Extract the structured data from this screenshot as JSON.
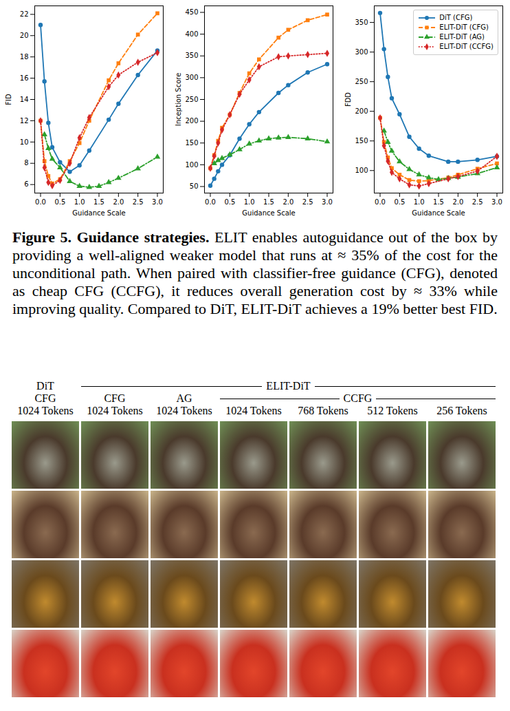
{
  "chart_data": [
    {
      "type": "line",
      "x_label": "Guidance Scale",
      "y_label": "FID",
      "grid": false,
      "xlim": [
        -0.15,
        3.15
      ],
      "xticks": [
        {
          "value": 0,
          "label": "0.0"
        },
        {
          "value": 0.5,
          "label": "0.5"
        },
        {
          "value": 1,
          "label": "1.0"
        },
        {
          "value": 1.5,
          "label": "1.5"
        },
        {
          "value": 2,
          "label": "2.0"
        },
        {
          "value": 2.5,
          "label": "2.5"
        },
        {
          "value": 3,
          "label": "3.0"
        }
      ],
      "ylim": [
        5.2,
        22.8
      ],
      "yticks": [
        6,
        8,
        10,
        12,
        14,
        16,
        18,
        20,
        22
      ],
      "series": [
        {
          "name": "DiT (CFG)",
          "color": "#1f77b4",
          "marker": "circle",
          "line_style": "solid",
          "x": [
            0,
            0.1,
            0.2,
            0.3,
            0.5,
            0.75,
            1,
            1.25,
            1.75,
            2,
            2.5,
            3
          ],
          "values": [
            21,
            15.7,
            11.8,
            9.5,
            8.1,
            7.2,
            7.8,
            9.2,
            12.1,
            13.6,
            16.3,
            18.6
          ]
        },
        {
          "name": "ELIT-DiT (CFG)",
          "color": "#ff7f0e",
          "marker": "square",
          "line_style": "dashed",
          "x": [
            0,
            0.1,
            0.2,
            0.3,
            0.5,
            0.75,
            1,
            1.25,
            1.75,
            2,
            2.5,
            3
          ],
          "values": [
            12,
            8.2,
            6.8,
            6.1,
            6.5,
            8.2,
            9.9,
            12,
            15.8,
            17.4,
            20.1,
            22.1
          ]
        },
        {
          "name": "ELIT-DiT (AG)",
          "color": "#2ca02c",
          "marker": "triangle",
          "line_style": "dashdot",
          "x": [
            0.1,
            0.2,
            0.3,
            0.5,
            0.75,
            1,
            1.25,
            1.5,
            1.75,
            2,
            2.5,
            3
          ],
          "values": [
            10.7,
            9.4,
            8.4,
            7.6,
            6.3,
            5.85,
            5.75,
            5.85,
            6.2,
            6.6,
            7.5,
            8.6
          ]
        },
        {
          "name": "ELIT-DiT (CCFG)",
          "color": "#d62728",
          "marker": "diamond",
          "line_style": "dotted",
          "x": [
            0,
            0.1,
            0.2,
            0.3,
            0.5,
            0.75,
            1,
            1.25,
            1.75,
            2,
            2.5,
            3
          ],
          "values": [
            12,
            7.6,
            6.2,
            5.9,
            6.4,
            8,
            10.4,
            12.3,
            15.2,
            16.3,
            17.5,
            18.4
          ]
        }
      ]
    },
    {
      "type": "line",
      "x_label": "Guidance Scale",
      "y_label": "Inception Score",
      "grid": false,
      "xlim": [
        -0.15,
        3.15
      ],
      "xticks": [
        {
          "value": 0,
          "label": "0.0"
        },
        {
          "value": 0.5,
          "label": "0.5"
        },
        {
          "value": 1,
          "label": "1.0"
        },
        {
          "value": 1.5,
          "label": "1.5"
        },
        {
          "value": 2,
          "label": "2.0"
        },
        {
          "value": 2.5,
          "label": "2.5"
        },
        {
          "value": 3,
          "label": "3.0"
        }
      ],
      "ylim": [
        35,
        465
      ],
      "yticks": [
        50,
        100,
        150,
        200,
        250,
        300,
        350,
        400,
        450
      ],
      "series": [
        {
          "name": "DiT (CFG)",
          "color": "#1f77b4",
          "marker": "circle",
          "line_style": "solid",
          "x": [
            0,
            0.1,
            0.2,
            0.3,
            0.5,
            0.75,
            1,
            1.25,
            1.75,
            2,
            2.5,
            3
          ],
          "values": [
            52,
            68,
            85,
            100,
            122,
            160,
            193,
            221,
            265,
            283,
            312,
            331
          ]
        },
        {
          "name": "ELIT-DiT (CFG)",
          "color": "#ff7f0e",
          "marker": "square",
          "line_style": "dashed",
          "x": [
            0,
            0.1,
            0.2,
            0.3,
            0.5,
            0.75,
            1,
            1.25,
            1.75,
            2,
            2.5,
            3
          ],
          "values": [
            92,
            122,
            155,
            185,
            215,
            265,
            310,
            342,
            392,
            410,
            432,
            445
          ]
        },
        {
          "name": "ELIT-DiT (AG)",
          "color": "#2ca02c",
          "marker": "triangle",
          "line_style": "dashdot",
          "x": [
            0.1,
            0.2,
            0.3,
            0.5,
            0.75,
            1,
            1.25,
            1.5,
            1.75,
            2,
            2.5,
            3
          ],
          "values": [
            103,
            110,
            115,
            123,
            135,
            148,
            155,
            160,
            162,
            163,
            160,
            153
          ]
        },
        {
          "name": "ELIT-DiT (CCFG)",
          "color": "#d62728",
          "marker": "diamond",
          "line_style": "dotted",
          "x": [
            0,
            0.1,
            0.2,
            0.3,
            0.5,
            0.75,
            1,
            1.25,
            1.75,
            2,
            2.5,
            3
          ],
          "values": [
            92,
            120,
            150,
            180,
            215,
            262,
            295,
            325,
            348,
            350,
            353,
            356
          ]
        }
      ]
    },
    {
      "type": "line",
      "x_label": "Guidance Scale",
      "y_label": "FDD",
      "grid": false,
      "legend": "upper right",
      "xlim": [
        -0.15,
        3.15
      ],
      "xticks": [
        {
          "value": 0,
          "label": "0.0"
        },
        {
          "value": 0.5,
          "label": "0.5"
        },
        {
          "value": 1,
          "label": "1.0"
        },
        {
          "value": 1.5,
          "label": "1.5"
        },
        {
          "value": 2,
          "label": "2.0"
        },
        {
          "value": 2.5,
          "label": "2.5"
        },
        {
          "value": 3,
          "label": "3.0"
        }
      ],
      "ylim": [
        62,
        378
      ],
      "yticks": [
        100,
        150,
        200,
        250,
        300,
        350
      ],
      "series": [
        {
          "name": "DiT (CFG)",
          "color": "#1f77b4",
          "marker": "circle",
          "line_style": "solid",
          "x": [
            0,
            0.1,
            0.2,
            0.3,
            0.5,
            0.75,
            1,
            1.25,
            1.75,
            2,
            2.5,
            3
          ],
          "values": [
            366,
            305,
            258,
            222,
            195,
            157,
            137,
            125,
            115,
            115,
            118,
            124
          ]
        },
        {
          "name": "ELIT-DiT (CFG)",
          "color": "#ff7f0e",
          "marker": "square",
          "line_style": "dashed",
          "x": [
            0,
            0.1,
            0.2,
            0.3,
            0.5,
            0.75,
            1,
            1.25,
            1.75,
            2,
            2.5,
            3
          ],
          "values": [
            189,
            148,
            122,
            104,
            93,
            84,
            82,
            83,
            88,
            93,
            103,
            112
          ]
        },
        {
          "name": "ELIT-DiT (AG)",
          "color": "#2ca02c",
          "marker": "triangle",
          "line_style": "dashdot",
          "x": [
            0.1,
            0.2,
            0.3,
            0.5,
            0.75,
            1,
            1.25,
            1.5,
            1.75,
            2,
            2.5,
            3
          ],
          "values": [
            167,
            148,
            133,
            115,
            102,
            93,
            88,
            85,
            87,
            89,
            95,
            105
          ]
        },
        {
          "name": "ELIT-DiT (CCFG)",
          "color": "#d62728",
          "marker": "diamond",
          "line_style": "dotted",
          "x": [
            0,
            0.1,
            0.2,
            0.3,
            0.5,
            0.75,
            1,
            1.25,
            1.75,
            2,
            2.5,
            3
          ],
          "values": [
            189,
            142,
            116,
            97,
            86,
            76,
            74,
            78,
            86,
            90,
            99,
            124
          ]
        }
      ]
    }
  ],
  "caption": {
    "label": "Figure 5.",
    "title": "Guidance strategies.",
    "text": "ELIT enables autoguidance out of the box by providing a well-aligned weaker model that runs at ≈ 35% of the cost for the unconditional path. When paired with classifier-free guidance (CFG), denoted as cheap CFG (CCFG), it reduces overall generation cost by ≈ 33% while improving quality. Compared to DiT, ELIT-DiT achieves a 19% better best FID."
  },
  "figure_grid": {
    "rows": 4,
    "panels": [
      {
        "heads": [
          "DiT",
          "CFG",
          "1024 Tokens"
        ]
      },
      {
        "group": "ELIT-DiT",
        "panels": [
          {
            "heads": [
              "CFG",
              "1024 Tokens"
            ]
          },
          {
            "heads": [
              "AG",
              "1024 Tokens"
            ]
          },
          {
            "group": "CCFG",
            "panels": [
              {
                "heads": [
                  "1024 Tokens"
                ]
              },
              {
                "heads": [
                  "768 Tokens"
                ]
              },
              {
                "heads": [
                  "512 Tokens"
                ]
              },
              {
                "heads": [
                  "256 Tokens"
                ]
              }
            ]
          }
        ]
      }
    ]
  }
}
